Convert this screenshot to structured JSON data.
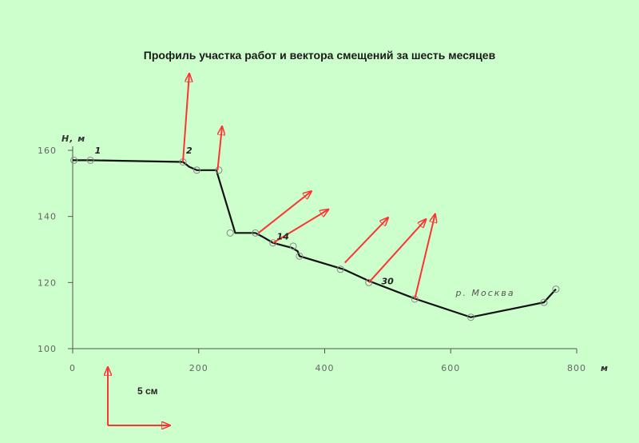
{
  "title": "Профиль участка работ и вектора смещений за шесть месяцев",
  "chart_data": {
    "type": "line",
    "xlabel": "м",
    "ylabel": "Н, м",
    "xlim": [
      0,
      800
    ],
    "ylim": [
      100,
      160
    ],
    "x_ticks": [
      "0",
      "200",
      "400",
      "600",
      "800"
    ],
    "y_ticks": [
      "100",
      "120",
      "140",
      "160"
    ],
    "profile": [
      [
        0,
        157
      ],
      [
        28,
        157
      ],
      [
        175,
        156.5
      ],
      [
        185,
        155
      ],
      [
        197,
        154
      ],
      [
        228,
        154
      ],
      [
        258,
        135
      ],
      [
        290,
        135
      ],
      [
        300,
        134
      ],
      [
        318,
        132
      ],
      [
        348,
        130.5
      ],
      [
        357,
        129.5
      ],
      [
        360,
        128
      ],
      [
        430,
        124
      ],
      [
        470,
        120.5
      ],
      [
        545,
        115
      ],
      [
        632,
        109.5
      ],
      [
        748,
        114
      ],
      [
        767,
        118
      ]
    ],
    "markers": [
      [
        2,
        157
      ],
      [
        28,
        157
      ],
      [
        175,
        156.5
      ],
      [
        197,
        154
      ],
      [
        232,
        154
      ],
      [
        250,
        135
      ],
      [
        290,
        135
      ],
      [
        318,
        132
      ],
      [
        350,
        131
      ],
      [
        360,
        128
      ],
      [
        425,
        124
      ],
      [
        470,
        120
      ],
      [
        543,
        115
      ],
      [
        632,
        109.5
      ],
      [
        748,
        114
      ],
      [
        767,
        118
      ]
    ],
    "point_labels": [
      {
        "text": "1",
        "x": 35,
        "y": 159
      },
      {
        "text": "2",
        "x": 180,
        "y": 159
      },
      {
        "text": "14",
        "x": 324,
        "y": 133
      },
      {
        "text": "30",
        "x": 490,
        "y": 119.5
      }
    ],
    "river_label": {
      "text": "р. Москва",
      "x": 608,
      "y": 116
    },
    "displacement_vectors": [
      {
        "from": [
          175,
          156.5
        ],
        "to": [
          185,
          183
        ]
      },
      {
        "from": [
          230,
          154
        ],
        "to": [
          237,
          167
        ]
      },
      {
        "from": [
          295,
          135
        ],
        "to": [
          378,
          147.5
        ]
      },
      {
        "from": [
          318,
          132
        ],
        "to": [
          405,
          142
        ]
      },
      {
        "from": [
          432,
          126
        ],
        "to": [
          500,
          139.5
        ]
      },
      {
        "from": [
          470,
          120
        ],
        "to": [
          560,
          139
        ]
      },
      {
        "from": [
          543,
          115
        ],
        "to": [
          575,
          140.5
        ]
      }
    ],
    "grid": false
  },
  "scale_bar": {
    "label": "5 см"
  },
  "colors": {
    "background": "#ccffcc",
    "vector": "#ff3333",
    "profile": "#111111",
    "axis": "#555555"
  }
}
